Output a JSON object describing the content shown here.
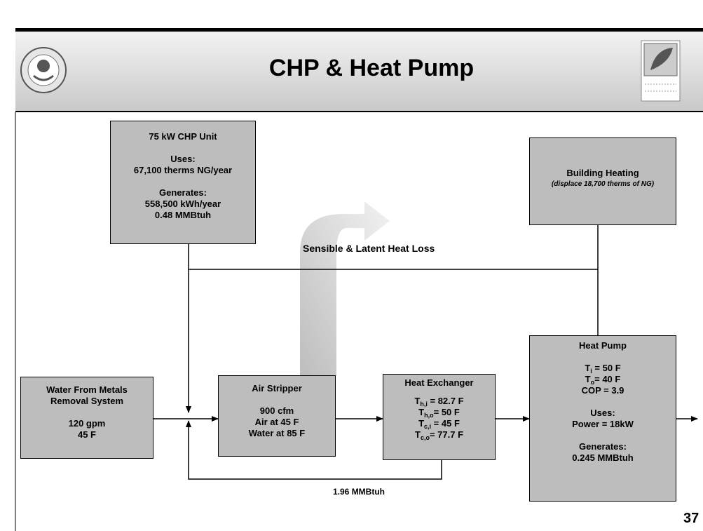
{
  "header": {
    "title": "CHP & Heat Pump"
  },
  "nodes": {
    "chp": {
      "title": "75 kW CHP Unit",
      "lines": [
        "Uses:",
        "67,100 therms NG/year",
        "Generates:",
        "558,500 kWh/year",
        "0.48 MMBtuh"
      ]
    },
    "building": {
      "title": "Building Heating",
      "note": "(displace 18,700 therms of NG)"
    },
    "water": {
      "lines": [
        "Water From Metals",
        "Removal System",
        "120 gpm",
        "45 F"
      ]
    },
    "stripper": {
      "title": "Air Stripper",
      "lines": [
        "900 cfm",
        "Air at 45 F",
        "Water at 85 F"
      ]
    },
    "exchanger": {
      "title": "Heat Exchanger",
      "lines": [
        {
          "symbol": "T",
          "sub": "h,i",
          "text": " = 82.7 F"
        },
        {
          "symbol": "T",
          "sub": "h,o",
          "text": "= 50 F"
        },
        {
          "symbol": "T",
          "sub": "c,i",
          "text": " = 45 F"
        },
        {
          "symbol": "T",
          "sub": "c,o",
          "text": "= 77.7 F"
        }
      ]
    },
    "heatpump": {
      "title": "Heat Pump",
      "params": [
        {
          "symbol": "T",
          "sub": "i",
          "text": " = 50 F"
        },
        {
          "symbol": "T",
          "sub": "o",
          "text": "= 40 F"
        }
      ],
      "lines": [
        "COP = 3.9",
        "Uses:",
        "Power = 18kW",
        "Generates:",
        "0.245 MMBtuh"
      ]
    }
  },
  "labels": {
    "loss": "Sensible & Latent Heat Loss",
    "recycle": "1.96 MMBtuh"
  },
  "page_number": "37"
}
